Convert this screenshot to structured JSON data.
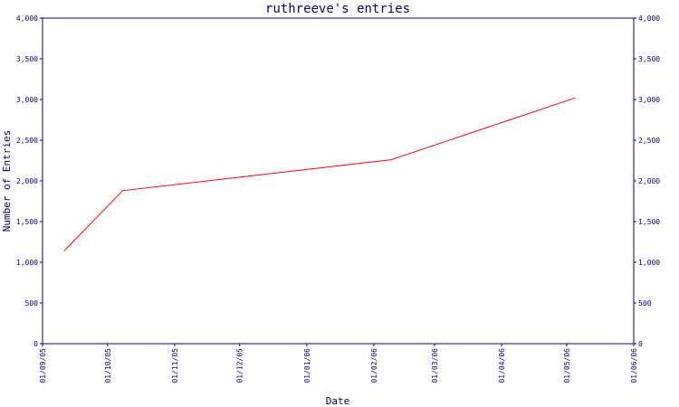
{
  "chart_data": {
    "type": "line",
    "title": "ruthreeve's entries",
    "xlabel": "Date",
    "ylabel": "Number of Entries",
    "ylim": [
      0,
      4000
    ],
    "y_ticks": [
      "0",
      "500",
      "1,000",
      "1,500",
      "2,000",
      "2,500",
      "3,000",
      "3,500",
      "4,000"
    ],
    "x_ticks": [
      "01/09/05",
      "01/10/05",
      "01/11/05",
      "01/12/05",
      "01/01/06",
      "01/02/06",
      "01/03/06",
      "01/04/06",
      "01/05/06",
      "01/06/06"
    ],
    "grid": false,
    "series": [
      {
        "color": "#ff0000",
        "points": [
          {
            "x": "2005-09-11",
            "y": 1140
          },
          {
            "x": "2005-10-08",
            "y": 1880
          },
          {
            "x": "2006-02-09",
            "y": 2260
          },
          {
            "x": "2006-05-05",
            "y": 3020
          }
        ]
      }
    ]
  },
  "colors": {
    "axis": "#000080",
    "line": "#ff0000"
  }
}
